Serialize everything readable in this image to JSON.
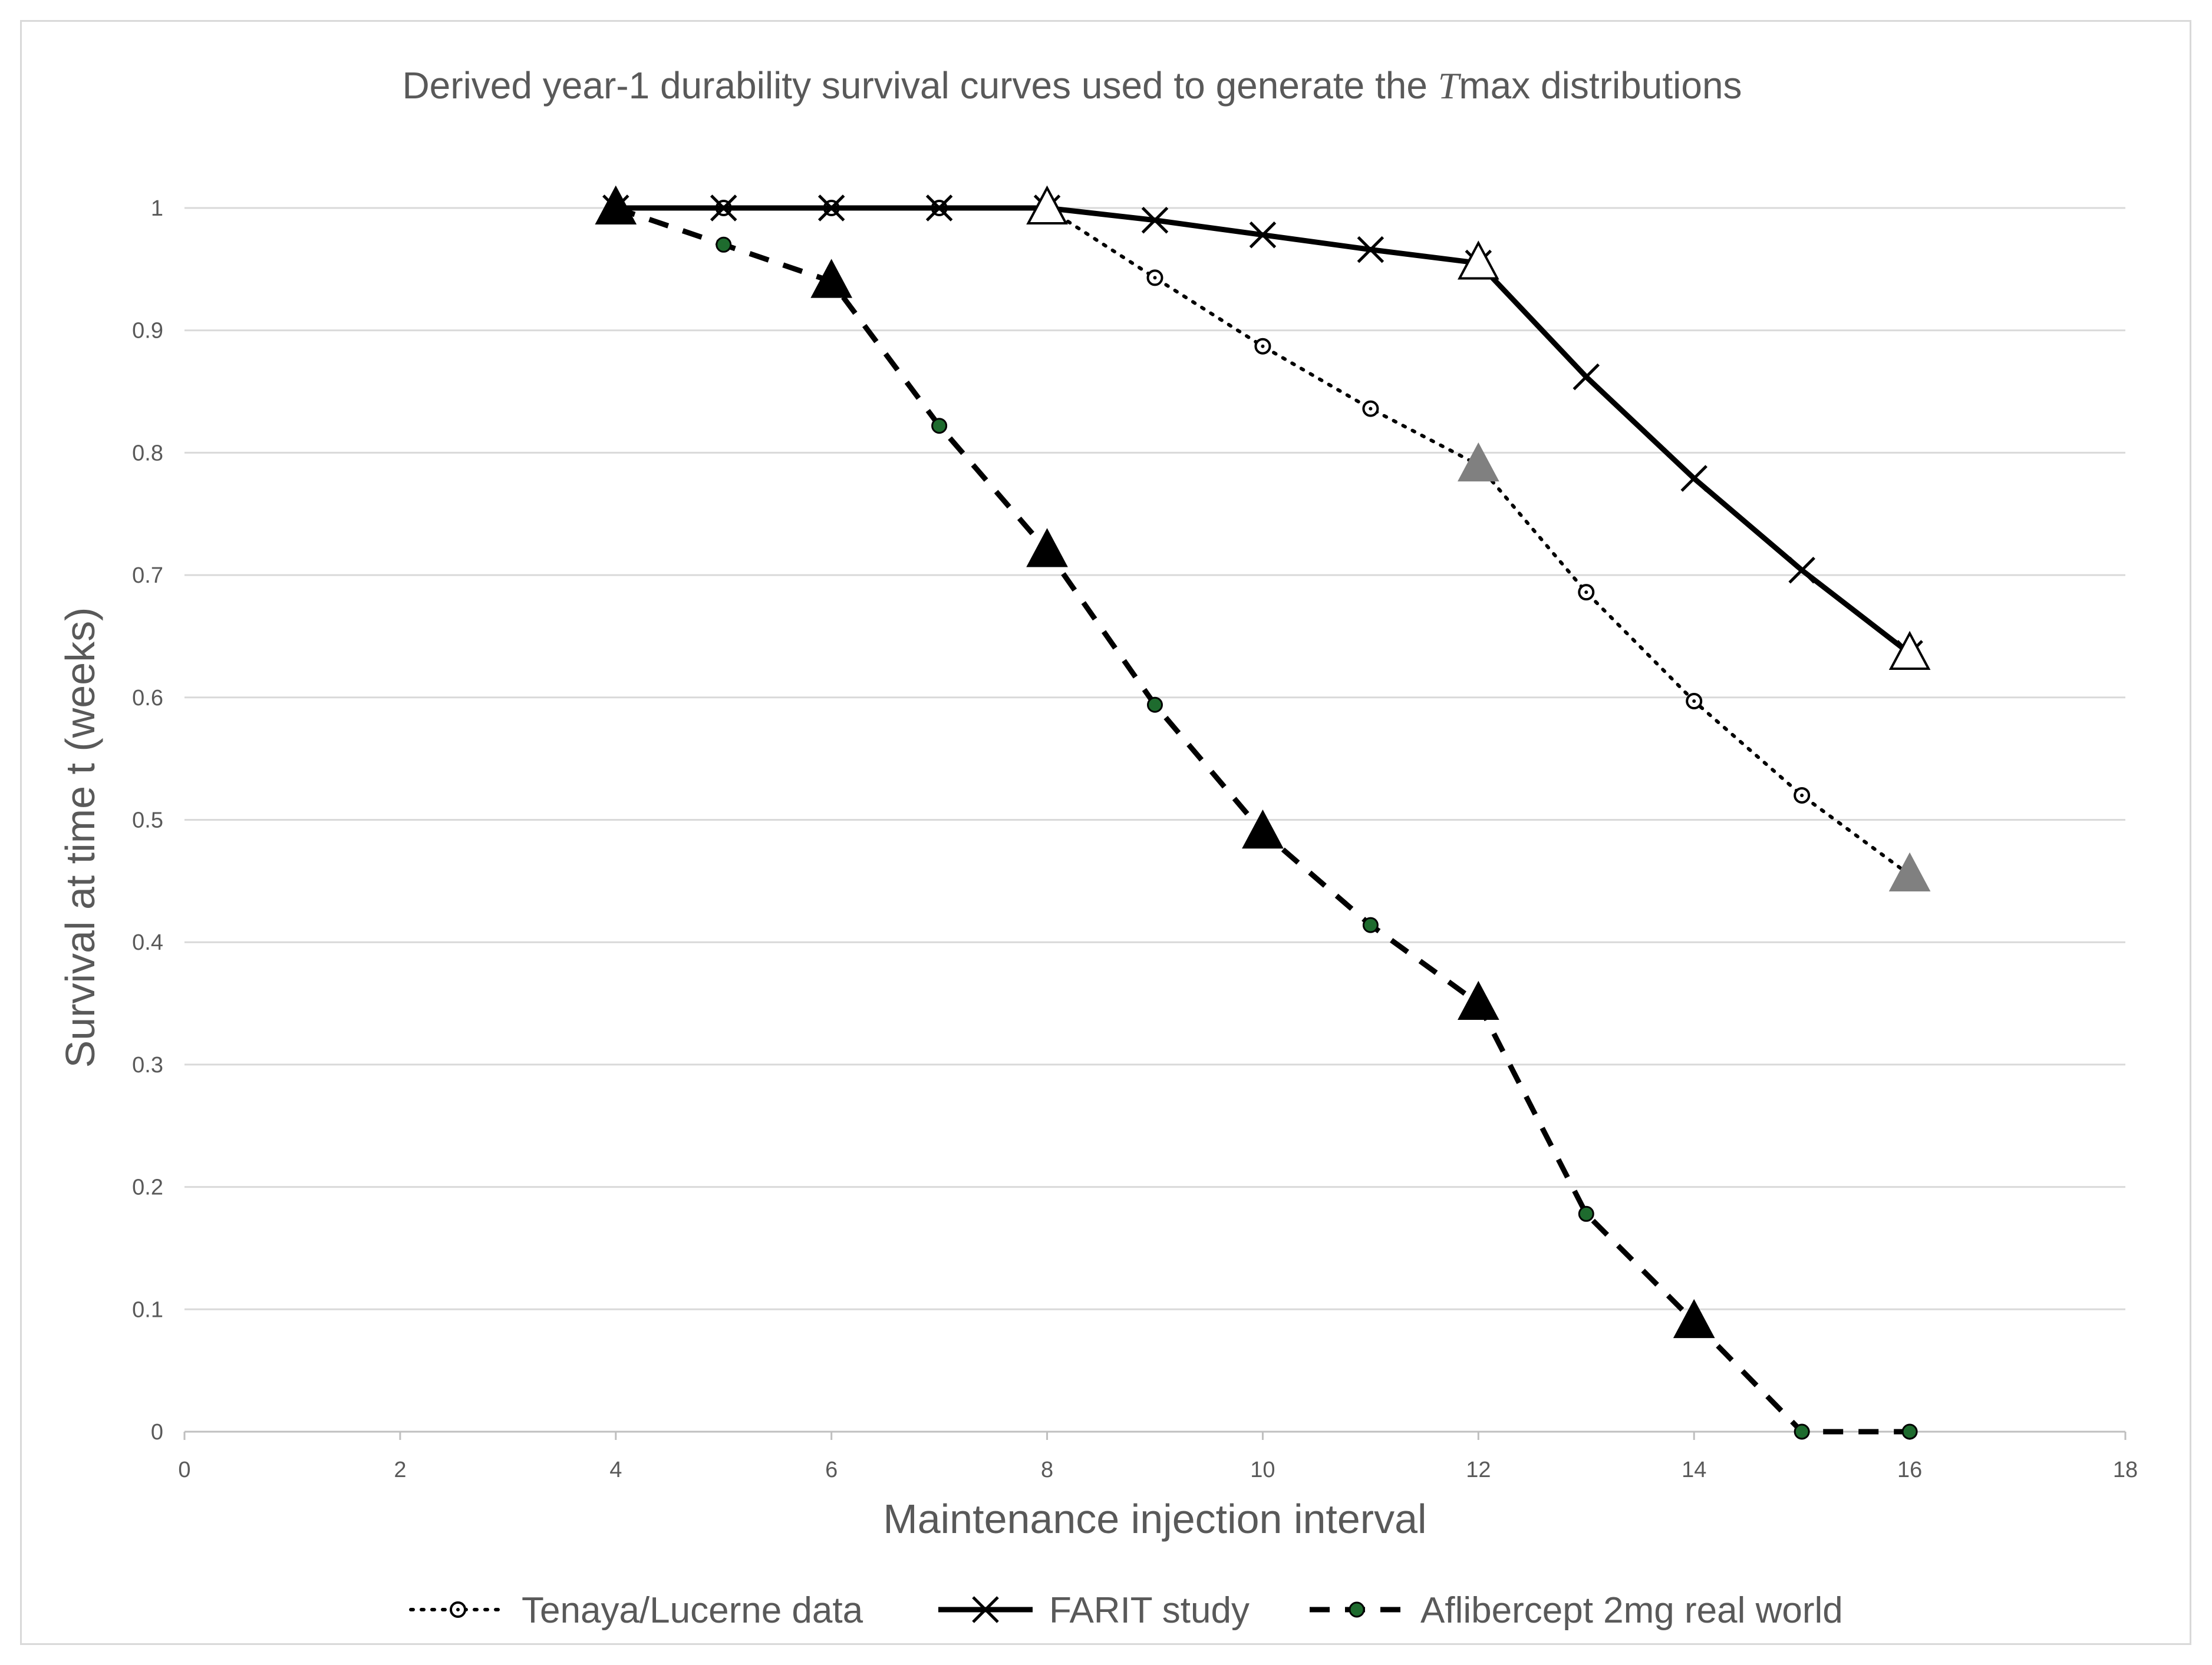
{
  "chart_data": {
    "type": "line",
    "title_parts": [
      "Derived year-1 durability survival curves used to generate the ",
      "T",
      "max distributions"
    ],
    "xlabel": "Maintenance injection interval",
    "ylabel": "Survival at time t (weeks)",
    "xlim": [
      0,
      18
    ],
    "ylim": [
      0,
      1
    ],
    "xticks": [
      0,
      2,
      4,
      6,
      8,
      10,
      12,
      14,
      16,
      18
    ],
    "yticks": [
      0,
      0.1,
      0.2,
      0.3,
      0.4,
      0.5,
      0.6,
      0.7,
      0.8,
      0.9,
      1
    ],
    "grid": "horizontal",
    "legend_position": "bottom",
    "series": [
      {
        "name": "Tenaya/Lucerne data",
        "style": "dotted",
        "marker": "open-circle",
        "color": "#000000",
        "x": [
          4,
          5,
          6,
          7,
          8,
          9,
          10,
          11,
          12,
          13,
          14,
          15,
          16
        ],
        "y": [
          1,
          1,
          1,
          1,
          1,
          0.943,
          0.887,
          0.836,
          0.79,
          0.686,
          0.597,
          0.52,
          0.455
        ]
      },
      {
        "name": "FARIT study",
        "style": "solid",
        "marker": "x",
        "color": "#000000",
        "x": [
          4,
          5,
          6,
          7,
          8,
          9,
          10,
          11,
          12,
          13,
          14,
          15,
          16
        ],
        "y": [
          1,
          1,
          1,
          1,
          1,
          0.99,
          0.978,
          0.966,
          0.955,
          0.862,
          0.779,
          0.704,
          0.636
        ]
      },
      {
        "name": "Aflibercept 2mg real world",
        "style": "dashed",
        "marker": "green-dot",
        "color": "#000000",
        "marker_color": "#1e6b2e",
        "x": [
          4,
          5,
          6,
          7,
          8,
          9,
          10,
          11,
          12,
          13,
          14,
          15,
          16
        ],
        "y": [
          1,
          0.97,
          0.94,
          0.822,
          0.72,
          0.594,
          0.49,
          0.414,
          0.35,
          0.178,
          0.09,
          0,
          0
        ]
      }
    ],
    "highlight_markers": [
      {
        "x": 8,
        "y": 1,
        "fill": "#ffffff"
      },
      {
        "x": 12,
        "y": 0.955,
        "fill": "#ffffff"
      },
      {
        "x": 16,
        "y": 0.636,
        "fill": "#ffffff"
      },
      {
        "x": 12,
        "y": 0.79,
        "fill": "#808080"
      },
      {
        "x": 16,
        "y": 0.455,
        "fill": "#808080"
      },
      {
        "x": 4,
        "y": 1,
        "fill": "#000000"
      },
      {
        "x": 6,
        "y": 0.94,
        "fill": "#000000"
      },
      {
        "x": 8,
        "y": 0.72,
        "fill": "#000000"
      },
      {
        "x": 10,
        "y": 0.49,
        "fill": "#000000"
      },
      {
        "x": 12,
        "y": 0.35,
        "fill": "#000000"
      },
      {
        "x": 14,
        "y": 0.09,
        "fill": "#000000"
      }
    ]
  }
}
